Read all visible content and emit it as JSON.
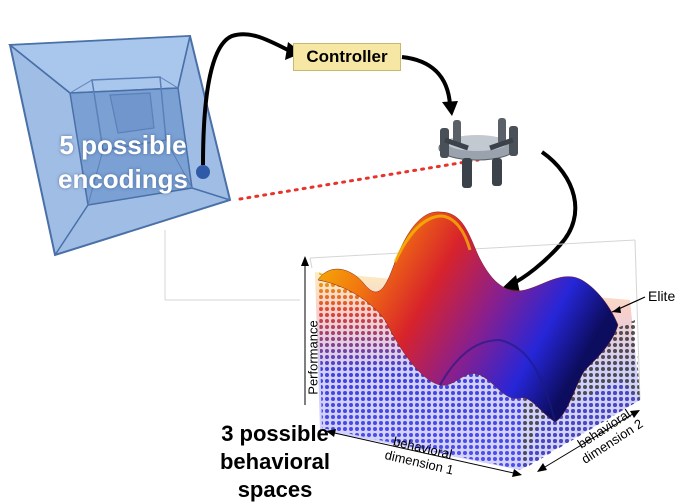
{
  "labels": {
    "encodings": "5 possible encodings",
    "spaces": "3 possible behavioral spaces",
    "controller": "Controller",
    "elite": "Elite",
    "performance": "Performance",
    "behavioral_dim_1": "behavioral dimension 1",
    "behavioral_dim_2": "behavioral dimension 2"
  },
  "colors": {
    "cube_face": "#7ba3d8",
    "cube_edge": "#4a70a8",
    "controller_bg": "#f7e7a4",
    "dots_red": "#e8332a",
    "surface_hot": "#f2c200",
    "surface_mid": "#e0362a",
    "surface_cool": "#2a2ad8"
  }
}
